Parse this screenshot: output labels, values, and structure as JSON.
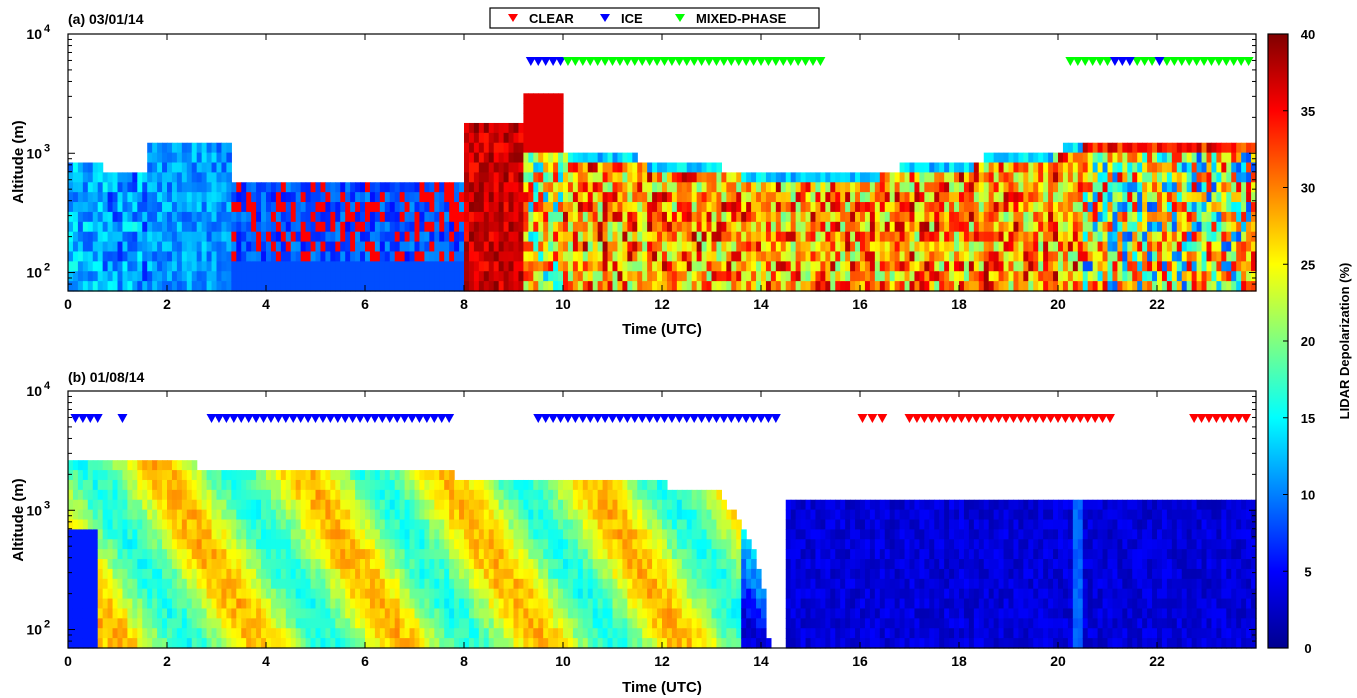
{
  "legend": {
    "items": [
      {
        "label": "CLEAR",
        "color": "#ff0000"
      },
      {
        "label": "ICE",
        "color": "#0000ff"
      },
      {
        "label": "MIXED-PHASE",
        "color": "#00ff00"
      }
    ]
  },
  "colorbar": {
    "label": "LIDAR Depolarization (%)",
    "ticks": [
      "0",
      "5",
      "10",
      "15",
      "20",
      "25",
      "30",
      "35",
      "40"
    ],
    "min": 0,
    "max": 40,
    "colormap": "jet"
  },
  "chart_data": [
    {
      "type": "heatmap",
      "panel": "a",
      "title": "(a) 03/01/14",
      "xlabel": "Time (UTC)",
      "ylabel": "Altitude (m)",
      "xlim": [
        0,
        24
      ],
      "ylim": [
        70,
        10000
      ],
      "yscale": "log",
      "xticks": [
        "0",
        "2",
        "4",
        "6",
        "8",
        "10",
        "12",
        "14",
        "16",
        "18",
        "20",
        "22"
      ],
      "yticks": [
        {
          "base": "10",
          "exp": "2"
        },
        {
          "base": "10",
          "exp": "3"
        },
        {
          "base": "10",
          "exp": "4"
        }
      ],
      "markers": [
        {
          "phase": "ICE",
          "color": "#0000ff",
          "times": [
            9.35,
            9.5,
            9.65,
            9.8,
            9.95
          ]
        },
        {
          "phase": "MIXED-PHASE",
          "color": "#00ff00",
          "times": [
            10.1,
            10.25,
            10.4,
            10.55,
            10.7,
            10.85,
            11.0,
            11.15,
            11.3,
            11.45,
            11.6,
            11.75,
            11.9,
            12.05,
            12.2,
            12.35,
            12.5,
            12.65,
            12.8,
            12.95,
            13.1,
            13.25,
            13.4,
            13.55,
            13.7,
            13.85,
            14.0,
            14.15,
            14.3,
            14.45,
            14.6,
            14.75,
            14.9,
            15.05,
            15.2
          ]
        },
        {
          "phase": "MIXED-PHASE",
          "color": "#00ff00",
          "times": [
            20.25,
            20.4,
            20.55,
            20.7,
            20.85,
            21.0,
            21.6,
            21.75,
            21.9,
            22.2,
            22.35,
            22.5,
            22.65,
            22.8,
            22.95,
            23.1,
            23.25,
            23.4,
            23.55,
            23.7,
            23.85
          ]
        },
        {
          "phase": "ICE",
          "color": "#0000ff",
          "times": [
            21.15,
            21.3,
            21.45,
            22.05
          ]
        }
      ]
    },
    {
      "type": "heatmap",
      "panel": "b",
      "title": "(b) 01/08/14",
      "xlabel": "Time (UTC)",
      "ylabel": "Altitude (m)",
      "xlim": [
        0,
        24
      ],
      "ylim": [
        70,
        10000
      ],
      "yscale": "log",
      "xticks": [
        "0",
        "2",
        "4",
        "6",
        "8",
        "10",
        "12",
        "14",
        "16",
        "18",
        "20",
        "22"
      ],
      "yticks": [
        {
          "base": "10",
          "exp": "2"
        },
        {
          "base": "10",
          "exp": "3"
        },
        {
          "base": "10",
          "exp": "4"
        }
      ],
      "markers": [
        {
          "phase": "ICE",
          "color": "#0000ff",
          "times": [
            0.15,
            0.3,
            0.45,
            0.6,
            1.1
          ]
        },
        {
          "phase": "ICE",
          "color": "#0000ff",
          "times": [
            2.9,
            3.05,
            3.2,
            3.35,
            3.5,
            3.65,
            3.8,
            3.95,
            4.1,
            4.25,
            4.4,
            4.55,
            4.7,
            4.85,
            5.0,
            5.15,
            5.3,
            5.45,
            5.6,
            5.75,
            5.9,
            6.05,
            6.2,
            6.35,
            6.5,
            6.65,
            6.8,
            6.95,
            7.1,
            7.25,
            7.4,
            7.55,
            7.7
          ]
        },
        {
          "phase": "ICE",
          "color": "#0000ff",
          "times": [
            9.5,
            9.65,
            9.8,
            9.95,
            10.1,
            10.25,
            10.4,
            10.55,
            10.7,
            10.85,
            11.0,
            11.15,
            11.3,
            11.45,
            11.6,
            11.75,
            11.9,
            12.05,
            12.2,
            12.35,
            12.5,
            12.65,
            12.8,
            12.95,
            13.1,
            13.25,
            13.4,
            13.55,
            13.7,
            13.85,
            14.0,
            14.15,
            14.3
          ]
        },
        {
          "phase": "CLEAR",
          "color": "#ff0000",
          "times": [
            16.05,
            16.25,
            16.45,
            17.0,
            17.15,
            17.3,
            17.45,
            17.6,
            17.75,
            17.9,
            18.05,
            18.2,
            18.35,
            18.5,
            18.65,
            18.8,
            18.95,
            19.1,
            19.25,
            19.4,
            19.55,
            19.7,
            19.85,
            20.0,
            20.15,
            20.3,
            20.45,
            20.6,
            20.75,
            20.9,
            21.05
          ]
        },
        {
          "phase": "CLEAR",
          "color": "#ff0000",
          "times": [
            22.75,
            22.9,
            23.05,
            23.2,
            23.35,
            23.5,
            23.65,
            23.8
          ]
        }
      ]
    }
  ]
}
